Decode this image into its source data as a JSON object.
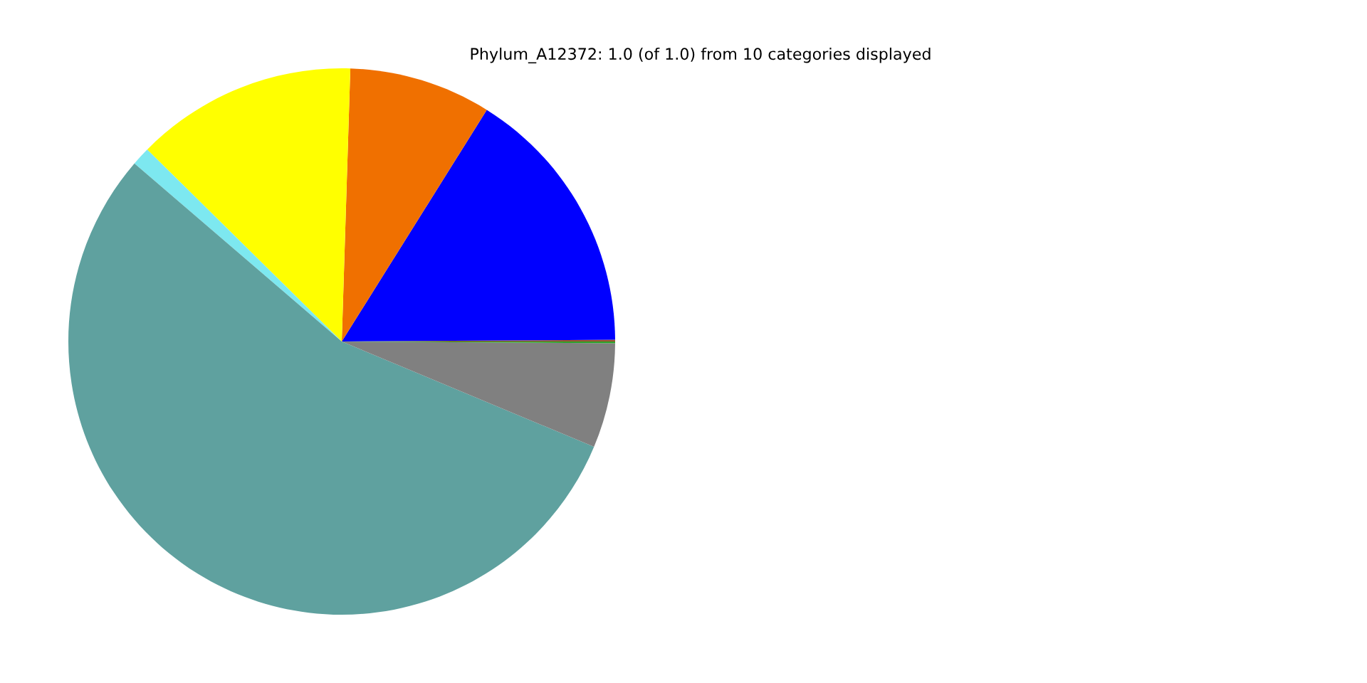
{
  "chart_data": {
    "type": "pie",
    "title": "Phylum_A12372: 1.0 (of 1.0) from 10 categories displayed",
    "categories": [
      null,
      null,
      null,
      null,
      null,
      null,
      null,
      null
    ],
    "values": [
      0.1,
      16.0,
      8.4,
      13.1,
      1.1,
      55.0,
      6.2,
      0.1
    ],
    "colors": [
      "#a0522d",
      "#0000ff",
      "#f07000",
      "#ffff00",
      "#7de8f0",
      "#5fa19f",
      "#808080",
      "#2ca02c"
    ]
  }
}
